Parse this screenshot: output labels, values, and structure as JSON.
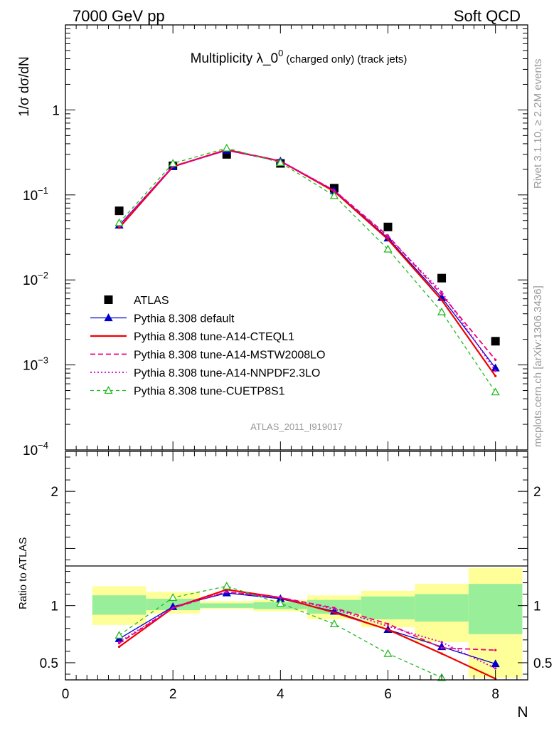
{
  "header": {
    "left": "7000 GeV pp",
    "right": "Soft QCD"
  },
  "side_text": {
    "rivet": "Rivet 3.1.10, ≥ 2.2M events",
    "mcplots": "mcplots.cern.ch [arXiv:1306.3436]"
  },
  "colors": {
    "atlas": "#000000",
    "default": "#0000cc",
    "cteql1": "#ee0000",
    "mstw": "#ee0077",
    "nnpdf": "#cc00cc",
    "cuetp8s1": "#22bb22",
    "band_outer": "#ffff99",
    "band_inner": "#99ee99"
  },
  "chart_data": [
    {
      "type": "line",
      "title": "Multiplicity λ_0",
      "title_sup": "0",
      "title_small": "(charged only) (track jets)",
      "ylabel": "1/σ dσ/dN",
      "yscale": "log",
      "ylim": [
        0.0001,
        10
      ],
      "xlim": [
        0,
        8.6
      ],
      "y_ticks": [
        {
          "value": 1,
          "base": "1",
          "exp": ""
        },
        {
          "value": 0.1,
          "base": "10",
          "exp": "−1"
        },
        {
          "value": 0.01,
          "base": "10",
          "exp": "−2"
        },
        {
          "value": 0.001,
          "base": "10",
          "exp": "−3"
        },
        {
          "value": 0.0001,
          "base": "10",
          "exp": "−4"
        }
      ],
      "watermark": "ATLAS_2011_I919017",
      "legend_position": "lower-left",
      "x": [
        1,
        2,
        3,
        4,
        5,
        6,
        7,
        8
      ],
      "series": [
        {
          "name": "ATLAS",
          "key": "atlas",
          "marker": "square",
          "style": "none",
          "values": [
            0.065,
            0.22,
            0.3,
            0.235,
            0.12,
            0.042,
            0.0105,
            0.0019
          ]
        },
        {
          "name": "Pythia 8.308 default",
          "key": "default",
          "marker": "triangle",
          "style": "solid",
          "values": [
            0.044,
            0.215,
            0.335,
            0.25,
            0.112,
            0.031,
            0.0062,
            0.00092
          ]
        },
        {
          "name": "Pythia 8.308 tune-A14-CTEQL1",
          "key": "cteql1",
          "marker": "none",
          "style": "solid-thick",
          "values": [
            0.041,
            0.215,
            0.34,
            0.25,
            0.11,
            0.03,
            0.0058,
            0.00074
          ]
        },
        {
          "name": "Pythia 8.308 tune-A14-MSTW2008LO",
          "key": "mstw",
          "marker": "none",
          "style": "dashed",
          "values": [
            0.043,
            0.218,
            0.335,
            0.25,
            0.113,
            0.033,
            0.0067,
            0.00115
          ]
        },
        {
          "name": "Pythia 8.308 tune-A14-NNPDF2.3LO",
          "key": "nnpdf",
          "marker": "none",
          "style": "dotted",
          "values": [
            0.043,
            0.216,
            0.335,
            0.25,
            0.113,
            0.032,
            0.0072,
            0.00085
          ]
        },
        {
          "name": "Pythia 8.308 tune-CUETP8S1",
          "key": "cuetp8s1",
          "marker": "open-triangle",
          "style": "dashed",
          "values": [
            0.047,
            0.235,
            0.355,
            0.24,
            0.098,
            0.023,
            0.0042,
            0.00048
          ]
        }
      ]
    },
    {
      "type": "line",
      "ylabel": "Ratio to ATLAS",
      "xlabel": "N",
      "ylim": [
        0.35,
        2.35
      ],
      "xlim": [
        0,
        8.6
      ],
      "y_ticks": [
        "0.5",
        "1",
        "2"
      ],
      "x_ticks": [
        "0",
        "2",
        "4",
        "6",
        "8"
      ],
      "reference_line": 1,
      "bands": [
        {
          "x0": 0.5,
          "x1": 1.5,
          "outer": [
            0.83,
            1.17
          ],
          "inner": [
            0.92,
            1.09
          ]
        },
        {
          "x0": 1.5,
          "x1": 2.5,
          "outer": [
            0.93,
            1.12
          ],
          "inner": [
            0.96,
            1.06
          ]
        },
        {
          "x0": 2.5,
          "x1": 3.5,
          "outer": [
            0.97,
            1.04
          ],
          "inner": [
            0.98,
            1.02
          ]
        },
        {
          "x0": 3.5,
          "x1": 4.5,
          "outer": [
            0.95,
            1.05
          ],
          "inner": [
            0.97,
            1.03
          ]
        },
        {
          "x0": 4.5,
          "x1": 5.5,
          "outer": [
            0.88,
            1.09
          ],
          "inner": [
            0.93,
            1.05
          ]
        },
        {
          "x0": 5.5,
          "x1": 6.5,
          "outer": [
            0.81,
            1.13
          ],
          "inner": [
            0.88,
            1.08
          ]
        },
        {
          "x0": 6.5,
          "x1": 7.5,
          "outer": [
            0.68,
            1.19
          ],
          "inner": [
            0.86,
            1.1
          ]
        },
        {
          "x0": 7.5,
          "x1": 8.5,
          "outer": [
            0.37,
            1.33
          ],
          "inner": [
            0.75,
            1.19
          ]
        }
      ],
      "series": [
        {
          "key": "default",
          "values": [
            0.71,
            0.99,
            1.11,
            1.06,
            0.95,
            0.79,
            0.64,
            0.49
          ]
        },
        {
          "key": "cteql1",
          "values": [
            0.64,
            0.98,
            1.14,
            1.07,
            0.94,
            0.79,
            0.58,
            0.36
          ]
        },
        {
          "key": "mstw",
          "values": [
            0.67,
            0.98,
            1.12,
            1.07,
            0.98,
            0.84,
            0.63,
            0.61
          ]
        },
        {
          "key": "nnpdf",
          "values": [
            0.68,
            0.98,
            1.12,
            1.07,
            0.97,
            0.82,
            0.68,
            0.45
          ]
        },
        {
          "key": "cuetp8s1",
          "values": [
            0.74,
            1.07,
            1.17,
            1.02,
            0.84,
            0.58,
            0.37,
            null
          ]
        }
      ]
    }
  ]
}
